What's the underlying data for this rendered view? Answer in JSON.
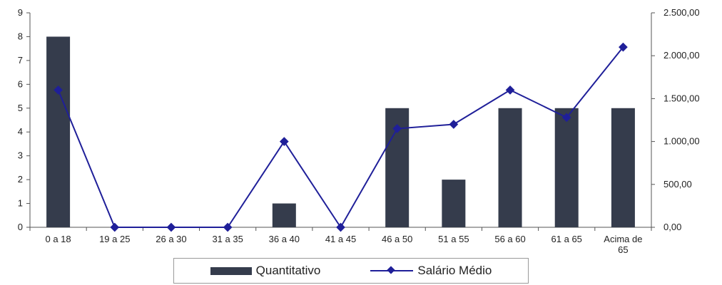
{
  "chart_data": {
    "type": "bar",
    "categories": [
      "0 a 18",
      "19 a 25",
      "26 a 30",
      "31 a 35",
      "36 a 40",
      "41 a 45",
      "46 a 50",
      "51 a 55",
      "56 a 60",
      "61 a 65",
      "Acima de 65"
    ],
    "series": [
      {
        "name": "Quantitativo",
        "type": "bar",
        "axis": "left",
        "values": [
          8,
          0,
          0,
          0,
          1,
          0,
          5,
          2,
          5,
          5,
          5
        ]
      },
      {
        "name": "Salário Médio",
        "type": "line",
        "axis": "right",
        "values": [
          1600,
          0,
          0,
          0,
          1000,
          0,
          1150,
          1200,
          1600,
          1280,
          2100
        ]
      }
    ],
    "y_left": {
      "min": 0,
      "max": 9,
      "ticks": [
        "0",
        "1",
        "2",
        "3",
        "4",
        "5",
        "6",
        "7",
        "8",
        "9"
      ]
    },
    "y_right": {
      "min": 0,
      "max": 2500,
      "ticks": [
        "0,00",
        "500,00",
        "1.000,00",
        "1.500,00",
        "2.000,00",
        "2.500,00"
      ]
    },
    "grid": false,
    "legend_position": "bottom",
    "colors": {
      "bar": "#353c4c",
      "line": "#1f1f99",
      "axis": "#555555"
    }
  },
  "legend": {
    "bar_label": "Quantitativo",
    "line_label": "Salário Médio"
  }
}
